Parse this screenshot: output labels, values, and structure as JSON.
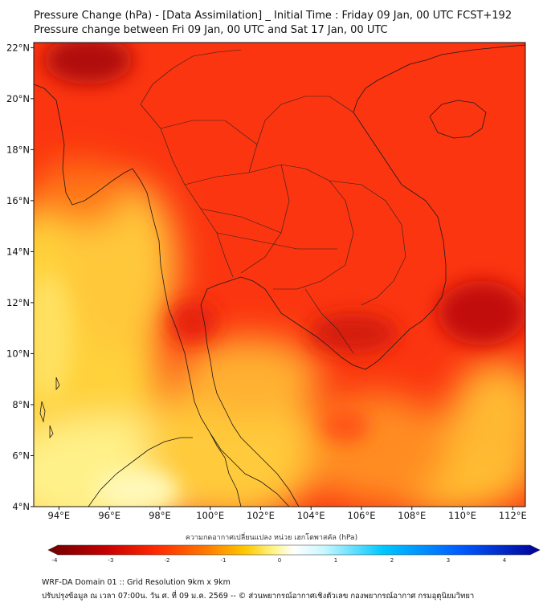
{
  "title_line1": "Pressure Change (hPa) - [Data Assimilation] _ Initial Time : Friday 09 Jan, 00 UTC FCST+192",
  "title_line2": "Pressure change between Fri 09 Jan, 00 UTC and Sat 17 Jan, 00 UTC",
  "map": {
    "lon_ticks": [
      "94°E",
      "96°E",
      "98°E",
      "100°E",
      "102°E",
      "104°E",
      "106°E",
      "108°E",
      "110°E",
      "112°E"
    ],
    "lat_ticks": [
      "22°N",
      "20°N",
      "18°N",
      "16°N",
      "14°N",
      "12°N",
      "10°N",
      "8°N",
      "6°N",
      "4°N"
    ],
    "lon_range": [
      93,
      112.5
    ],
    "lat_range": [
      4,
      22.2
    ]
  },
  "colorbar": {
    "title": "ความกดอากาศเปลี่ยนแปลง หน่วย เฮกโตพาสคัล (hPa)",
    "ticks": [
      "-4",
      "-3",
      "-2",
      "-1",
      "0",
      "1",
      "2",
      "3",
      "4"
    ],
    "range": [
      -4,
      4
    ],
    "colors": [
      "#6e0000",
      "#c80000",
      "#ff2a00",
      "#ff7800",
      "#ffc800",
      "#fff58c",
      "#ffffff",
      "#9ff0ff",
      "#00c8ff",
      "#005aff",
      "#000096"
    ]
  },
  "footer_line1": "WRF-DA Domain 01 :: Grid Resolution 9km x 9km",
  "footer_line2": "ปรับปรุงข้อมูล ณ เวลา 07:00น. วัน ศ. ที่ 09 ม.ค. 2569 -- © ส่วนพยากรณ์อากาศเชิงตัวเลข กองพยากรณ์อากาศ กรมอุตุนิยมวิทยา"
}
